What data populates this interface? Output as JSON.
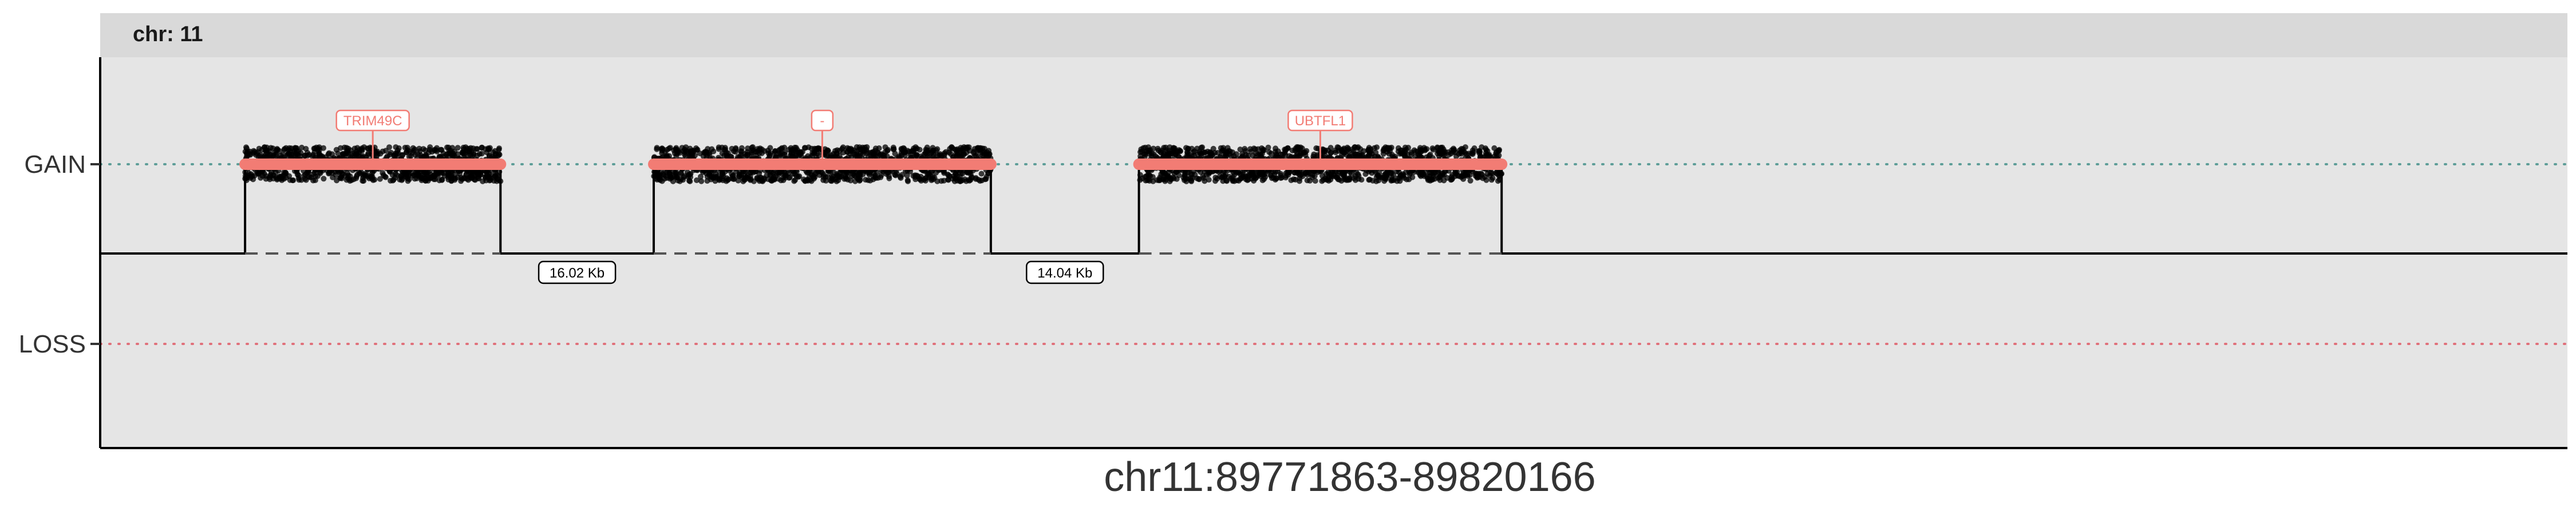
{
  "chart_data": {
    "type": "scatter",
    "facet_label": "chr: 11",
    "xlabel": "chr11:89771863-89820166",
    "y_categories": [
      "GAIN",
      "LOSS"
    ],
    "grid": false,
    "segments": [
      {
        "gene": "TRIM49C",
        "state": "GAIN",
        "start": 89774700,
        "end": 89779700
      },
      {
        "gene": "-",
        "state": "GAIN",
        "start": 89782700,
        "end": 89789300
      },
      {
        "gene": "UBTFL1",
        "state": "GAIN",
        "start": 89792200,
        "end": 89799300
      }
    ],
    "gaps": [
      {
        "label": "16.02 Kb"
      },
      {
        "label": "14.04 Kb"
      }
    ],
    "xlim": [
      89771863,
      89820166
    ],
    "colors": {
      "panel_bg": "#e5e5e5",
      "strip_bg": "#d9d9d9",
      "segment": "#f27c74",
      "gain_line": "#5e9e98",
      "loss_line": "#e0707a",
      "points": "#000000"
    }
  }
}
